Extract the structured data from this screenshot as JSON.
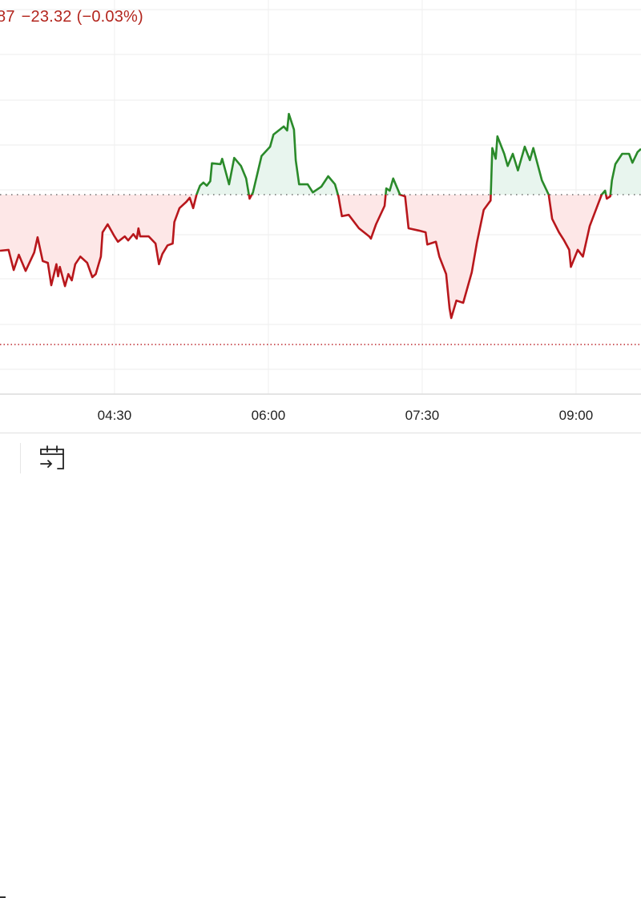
{
  "header": {
    "price_fragment": "87",
    "change": "−23.32",
    "change_pct": "(−0.03%)"
  },
  "colors": {
    "up": "#2a8a2a",
    "down": "#b8171c",
    "up_fill": "#e8f5ee",
    "down_fill": "#fde7e7",
    "grid": "#eeeeee"
  },
  "toolbar": {
    "icons": [
      "minus-icon",
      "calendar-goto-date-icon"
    ]
  },
  "chart_data": {
    "type": "area",
    "x_ticks": [
      "04:30",
      "06:00",
      "07:30",
      "09:00"
    ],
    "x_range": [
      "03:23",
      "09:38"
    ],
    "baseline": 0,
    "reference_line": -33.4,
    "grid": true,
    "series": [
      {
        "points": [
          [
            "03:23",
            -12.5
          ],
          [
            "03:28",
            -12.3
          ],
          [
            "03:31",
            -16.8
          ],
          [
            "03:34",
            -13.4
          ],
          [
            "03:38",
            -17.0
          ],
          [
            "03:43",
            -12.9
          ],
          [
            "03:45",
            -9.5
          ],
          [
            "03:48",
            -14.8
          ],
          [
            "03:51",
            -15.2
          ],
          [
            "03:53",
            -20.2
          ],
          [
            "03:56",
            -15.5
          ],
          [
            "03:57",
            -18.2
          ],
          [
            "03:58",
            -16.1
          ],
          [
            "04:01",
            -20.4
          ],
          [
            "04:03",
            -17.7
          ],
          [
            "04:05",
            -19.1
          ],
          [
            "04:07",
            -15.5
          ],
          [
            "04:10",
            -13.8
          ],
          [
            "04:14",
            -15.2
          ],
          [
            "04:17",
            -18.4
          ],
          [
            "04:19",
            -17.7
          ],
          [
            "04:22",
            -13.8
          ],
          [
            "04:23",
            -8.4
          ],
          [
            "04:26",
            -6.6
          ],
          [
            "04:30",
            -9.3
          ],
          [
            "04:32",
            -10.5
          ],
          [
            "04:36",
            -9.3
          ],
          [
            "04:38",
            -10.2
          ],
          [
            "04:41",
            -8.8
          ],
          [
            "04:43",
            -9.8
          ],
          [
            "04:44",
            -7.5
          ],
          [
            "04:45",
            -9.3
          ],
          [
            "04:50",
            -9.3
          ],
          [
            "04:54",
            -10.9
          ],
          [
            "04:56",
            -15.5
          ],
          [
            "04:58",
            -13.2
          ],
          [
            "05:01",
            -11.3
          ],
          [
            "05:04",
            -10.9
          ],
          [
            "05:05",
            -6.1
          ],
          [
            "05:08",
            -3.0
          ],
          [
            "05:12",
            -1.6
          ],
          [
            "05:14",
            -0.7
          ],
          [
            "05:16",
            -3.0
          ],
          [
            "05:18",
            0
          ],
          [
            "05:20",
            2.0
          ],
          [
            "05:22",
            2.7
          ],
          [
            "05:24",
            2.0
          ],
          [
            "05:26",
            3.0
          ],
          [
            "05:27",
            7.0
          ],
          [
            "05:32",
            6.8
          ],
          [
            "05:33",
            8.0
          ],
          [
            "05:37",
            2.3
          ],
          [
            "05:40",
            8.2
          ],
          [
            "05:44",
            6.4
          ],
          [
            "05:47",
            3.6
          ],
          [
            "05:49",
            -0.9
          ],
          [
            "05:51",
            0.5
          ],
          [
            "05:56",
            8.6
          ],
          [
            "06:01",
            10.7
          ],
          [
            "06:03",
            13.4
          ],
          [
            "06:09",
            15.2
          ],
          [
            "06:11",
            14.3
          ],
          [
            "06:12",
            18.0
          ],
          [
            "06:15",
            14.5
          ],
          [
            "06:16",
            7.7
          ],
          [
            "06:18",
            2.3
          ],
          [
            "06:23",
            2.3
          ],
          [
            "06:26",
            0.5
          ],
          [
            "06:31",
            1.8
          ],
          [
            "06:35",
            4.1
          ],
          [
            "06:39",
            2.3
          ],
          [
            "06:41",
            -0.4
          ],
          [
            "06:43",
            -4.8
          ],
          [
            "06:47",
            -4.5
          ],
          [
            "06:53",
            -7.5
          ],
          [
            "06:59",
            -9.3
          ],
          [
            "07:00",
            -9.8
          ],
          [
            "07:03",
            -6.6
          ],
          [
            "07:08",
            -2.5
          ],
          [
            "07:09",
            1.4
          ],
          [
            "07:11",
            0.9
          ],
          [
            "07:13",
            3.6
          ],
          [
            "07:17",
            0
          ],
          [
            "07:20",
            -0.4
          ],
          [
            "07:22",
            -7.5
          ],
          [
            "07:28",
            -8.0
          ],
          [
            "07:32",
            -8.4
          ],
          [
            "07:33",
            -11.1
          ],
          [
            "07:38",
            -10.5
          ],
          [
            "07:40",
            -13.8
          ],
          [
            "07:44",
            -17.7
          ],
          [
            "07:46",
            -25.4
          ],
          [
            "07:47",
            -27.5
          ],
          [
            "07:50",
            -23.6
          ],
          [
            "07:54",
            -24.1
          ],
          [
            "07:59",
            -17.3
          ],
          [
            "08:02",
            -10.7
          ],
          [
            "08:06",
            -3.4
          ],
          [
            "08:10",
            -1.3
          ],
          [
            "08:11",
            10.4
          ],
          [
            "08:13",
            8.0
          ],
          [
            "08:14",
            13.0
          ],
          [
            "08:18",
            9.1
          ],
          [
            "08:20",
            6.4
          ],
          [
            "08:23",
            9.1
          ],
          [
            "08:26",
            5.4
          ],
          [
            "08:30",
            10.7
          ],
          [
            "08:33",
            7.7
          ],
          [
            "08:35",
            10.4
          ],
          [
            "08:40",
            3.2
          ],
          [
            "08:44",
            0
          ],
          [
            "08:46",
            -5.4
          ],
          [
            "08:50",
            -8.4
          ],
          [
            "08:53",
            -10.2
          ],
          [
            "08:56",
            -12.3
          ],
          [
            "08:57",
            -16.1
          ],
          [
            "09:01",
            -12.3
          ],
          [
            "09:04",
            -13.8
          ],
          [
            "09:08",
            -7.0
          ],
          [
            "09:12",
            -3.0
          ],
          [
            "09:15",
            0
          ],
          [
            "09:17",
            0.9
          ],
          [
            "09:18",
            -0.9
          ],
          [
            "09:20",
            -0.4
          ],
          [
            "09:21",
            3.2
          ],
          [
            "09:23",
            6.8
          ],
          [
            "09:27",
            9.1
          ],
          [
            "09:31",
            9.1
          ],
          [
            "09:33",
            7.1
          ],
          [
            "09:36",
            9.5
          ],
          [
            "09:38",
            10.2
          ]
        ]
      }
    ]
  }
}
